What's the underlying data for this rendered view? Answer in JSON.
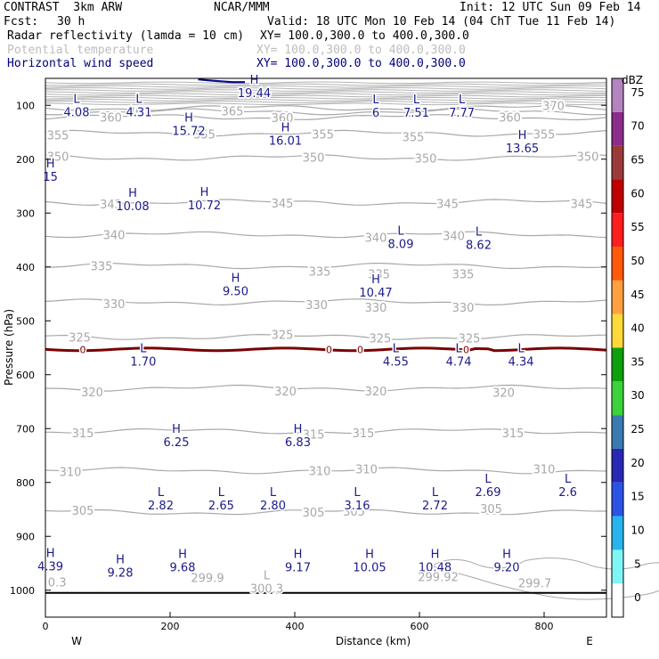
{
  "header": {
    "project": "CONTRAST  3km ARW",
    "agency": "NCAR/MMM",
    "init": "Init: 12 UTC Sun 09 Feb 14",
    "fcst_label": "Fcst:",
    "fcst_value": "30 h",
    "valid": "Valid: 18 UTC Mon 10 Feb 14 (04 ChT Tue 11 Feb 14)",
    "field1_name": "Radar reflectivity (lamda = 10 cm)",
    "field1_xy": "XY= 100.0,300.0 to 400.0,300.0",
    "field2_name": "Potential temperature",
    "field2_xy": "XY= 100.0,300.0 to 400.0,300.0",
    "field3_name": "Horizontal wind speed",
    "field3_xy": "XY= 100.0,300.0 to 400.0,300.0"
  },
  "colors": {
    "frame": "#000000",
    "theta": "#a8a8a8",
    "wind_label": "#1a1a8a",
    "freezing_line": "#7a0000",
    "jet_line": "#0a0a8a"
  },
  "chart_data": {
    "type": "cross-section",
    "xlabel": "Distance (km)",
    "ylabel": "Pressure (hPa)",
    "xlim": [
      0,
      900
    ],
    "ylim": [
      1050,
      50
    ],
    "x_ticks": [
      0,
      200,
      400,
      600,
      800
    ],
    "y_ticks": [
      100,
      200,
      300,
      400,
      500,
      600,
      700,
      800,
      900,
      1000
    ],
    "x_end_labels": {
      "left": "W",
      "right": "E"
    },
    "colorbar": {
      "unit": "dBZ",
      "levels": [
        0,
        5,
        10,
        15,
        20,
        25,
        30,
        35,
        40,
        45,
        50,
        55,
        60,
        65,
        70,
        75
      ],
      "colors": [
        "#ffffff",
        "#7ff5f5",
        "#27b4ec",
        "#2a53e6",
        "#2828b4",
        "#3a7ab2",
        "#3cd23c",
        "#0ca10c",
        "#ffd83a",
        "#ffa040",
        "#ff5a0c",
        "#ff1e1e",
        "#c00000",
        "#9a3a3a",
        "#8c2c8c",
        "#b484bf"
      ]
    },
    "theta_contours": [
      {
        "label": "370",
        "p": 105
      },
      {
        "label": "365",
        "p": 112
      },
      {
        "label": "360",
        "p": 122
      },
      {
        "label": "355",
        "p": 152
      },
      {
        "label": "350",
        "p": 197
      },
      {
        "label": "345",
        "p": 280
      },
      {
        "label": "340",
        "p": 340
      },
      {
        "label": "335",
        "p": 398
      },
      {
        "label": "330",
        "p": 465
      },
      {
        "label": "325",
        "p": 530
      },
      {
        "label": "320",
        "p": 625
      },
      {
        "label": "315",
        "p": 705
      },
      {
        "label": "310",
        "p": 778
      },
      {
        "label": "305",
        "p": 855
      }
    ],
    "theta_labels": [
      {
        "text": "370",
        "x": 815,
        "p": 100
      },
      {
        "text": "365",
        "x": 150,
        "p": 110
      },
      {
        "text": "365",
        "x": 300,
        "p": 110
      },
      {
        "text": "360",
        "x": 105,
        "p": 122
      },
      {
        "text": "360",
        "x": 380,
        "p": 123
      },
      {
        "text": "360",
        "x": 745,
        "p": 122
      },
      {
        "text": "355",
        "x": 20,
        "p": 155
      },
      {
        "text": "355",
        "x": 255,
        "p": 153
      },
      {
        "text": "355",
        "x": 445,
        "p": 153
      },
      {
        "text": "355",
        "x": 590,
        "p": 158
      },
      {
        "text": "355",
        "x": 800,
        "p": 153
      },
      {
        "text": "350",
        "x": 20,
        "p": 195
      },
      {
        "text": "350",
        "x": 430,
        "p": 196
      },
      {
        "text": "350",
        "x": 610,
        "p": 198
      },
      {
        "text": "350",
        "x": 870,
        "p": 195
      },
      {
        "text": "345",
        "x": 105,
        "p": 283
      },
      {
        "text": "345",
        "x": 380,
        "p": 281
      },
      {
        "text": "345",
        "x": 645,
        "p": 282
      },
      {
        "text": "345",
        "x": 860,
        "p": 282
      },
      {
        "text": "340",
        "x": 110,
        "p": 340
      },
      {
        "text": "340",
        "x": 530,
        "p": 345
      },
      {
        "text": "340",
        "x": 655,
        "p": 342
      },
      {
        "text": "335",
        "x": 90,
        "p": 398
      },
      {
        "text": "335",
        "x": 440,
        "p": 408
      },
      {
        "text": "335",
        "x": 535,
        "p": 413
      },
      {
        "text": "335",
        "x": 670,
        "p": 413
      },
      {
        "text": "330",
        "x": 110,
        "p": 468
      },
      {
        "text": "330",
        "x": 435,
        "p": 470
      },
      {
        "text": "330",
        "x": 530,
        "p": 475
      },
      {
        "text": "330",
        "x": 670,
        "p": 475
      },
      {
        "text": "325",
        "x": 55,
        "p": 530
      },
      {
        "text": "325",
        "x": 380,
        "p": 525
      },
      {
        "text": "325",
        "x": 537,
        "p": 532
      },
      {
        "text": "325",
        "x": 680,
        "p": 532
      },
      {
        "text": "320",
        "x": 75,
        "p": 632
      },
      {
        "text": "320",
        "x": 385,
        "p": 630
      },
      {
        "text": "320",
        "x": 530,
        "p": 630
      },
      {
        "text": "320",
        "x": 735,
        "p": 633
      },
      {
        "text": "315",
        "x": 60,
        "p": 708
      },
      {
        "text": "315",
        "x": 430,
        "p": 710
      },
      {
        "text": "315",
        "x": 510,
        "p": 708
      },
      {
        "text": "315",
        "x": 750,
        "p": 708
      },
      {
        "text": "310",
        "x": 40,
        "p": 780
      },
      {
        "text": "310",
        "x": 440,
        "p": 778
      },
      {
        "text": "310",
        "x": 515,
        "p": 775
      },
      {
        "text": "310",
        "x": 800,
        "p": 775
      },
      {
        "text": "305",
        "x": 60,
        "p": 852
      },
      {
        "text": "305",
        "x": 430,
        "p": 855
      },
      {
        "text": "305",
        "x": 495,
        "p": 853
      },
      {
        "text": "305",
        "x": 715,
        "p": 848
      }
    ],
    "wind_extrema": [
      {
        "type": "L",
        "value": "4.08",
        "x": 50,
        "p": 105
      },
      {
        "type": "L",
        "value": "4.31",
        "x": 150,
        "p": 105
      },
      {
        "type": "H",
        "value": "19.44",
        "x": 335,
        "p": 70
      },
      {
        "type": "H",
        "value": "15.72",
        "x": 230,
        "p": 140
      },
      {
        "type": "H",
        "value": "16.01",
        "x": 385,
        "p": 158
      },
      {
        "type": "L",
        "value": "6",
        "x": 530,
        "p": 106
      },
      {
        "type": "L",
        "value": "7.51",
        "x": 595,
        "p": 106
      },
      {
        "type": "L",
        "value": "7.77",
        "x": 668,
        "p": 106
      },
      {
        "type": "H",
        "value": "13.65",
        "x": 765,
        "p": 172
      },
      {
        "type": "H",
        "value": "10.08",
        "x": 140,
        "p": 280
      },
      {
        "type": "H",
        "value": "10.72",
        "x": 255,
        "p": 278
      },
      {
        "type": "L",
        "value": "8.09",
        "x": 570,
        "p": 350
      },
      {
        "type": "L",
        "value": "8.62",
        "x": 695,
        "p": 352
      },
      {
        "type": "H",
        "value": "9.50",
        "x": 305,
        "p": 438
      },
      {
        "type": "H",
        "value": "10.47",
        "x": 530,
        "p": 440
      },
      {
        "type": "L",
        "value": "1.70",
        "x": 157,
        "p": 568
      },
      {
        "type": "L",
        "value": "4.55",
        "x": 562,
        "p": 568
      },
      {
        "type": "L",
        "value": "4.74",
        "x": 663,
        "p": 568
      },
      {
        "type": "L",
        "value": "4.34",
        "x": 763,
        "p": 568
      },
      {
        "type": "H",
        "value": "6.25",
        "x": 210,
        "p": 718
      },
      {
        "type": "H",
        "value": "6.83",
        "x": 405,
        "p": 718
      },
      {
        "type": "L",
        "value": "2.69",
        "x": 710,
        "p": 810
      },
      {
        "type": "L",
        "value": "2.6",
        "x": 838,
        "p": 810
      },
      {
        "type": "L",
        "value": "2.82",
        "x": 185,
        "p": 835
      },
      {
        "type": "L",
        "value": "2.65",
        "x": 282,
        "p": 835
      },
      {
        "type": "L",
        "value": "2.80",
        "x": 365,
        "p": 835
      },
      {
        "type": "L",
        "value": "3.16",
        "x": 500,
        "p": 835
      },
      {
        "type": "L",
        "value": "2.72",
        "x": 625,
        "p": 835
      },
      {
        "type": "H",
        "value": "4.39",
        "x": 8,
        "p": 948
      },
      {
        "type": "H",
        "value": "9.28",
        "x": 120,
        "p": 960
      },
      {
        "type": "H",
        "value": "9.68",
        "x": 220,
        "p": 950
      },
      {
        "type": "H",
        "value": "9.17",
        "x": 405,
        "p": 950
      },
      {
        "type": "H",
        "value": "10.05",
        "x": 520,
        "p": 950
      },
      {
        "type": "H",
        "value": "10.48",
        "x": 625,
        "p": 950
      },
      {
        "type": "H",
        "value": "9.20",
        "x": 740,
        "p": 950
      },
      {
        "type": "H",
        "value": "15",
        "x": 8,
        "p": 225
      }
    ],
    "theta_extrema": [
      {
        "type": "",
        "value": "0.3",
        "x": 4,
        "p": 978
      },
      {
        "type": "",
        "value": "299.9",
        "x": 260,
        "p": 970
      },
      {
        "type": "L",
        "value": "300.3",
        "x": 355,
        "p": 990
      },
      {
        "type": "",
        "value": "299.92",
        "x": 630,
        "p": 968
      },
      {
        "type": "",
        "value": "299.7",
        "x": 785,
        "p": 980
      }
    ],
    "freezing_line_markers": [
      "0",
      "0",
      "0",
      "0"
    ],
    "freezing_level_p": 553,
    "ground_p": 1005
  }
}
